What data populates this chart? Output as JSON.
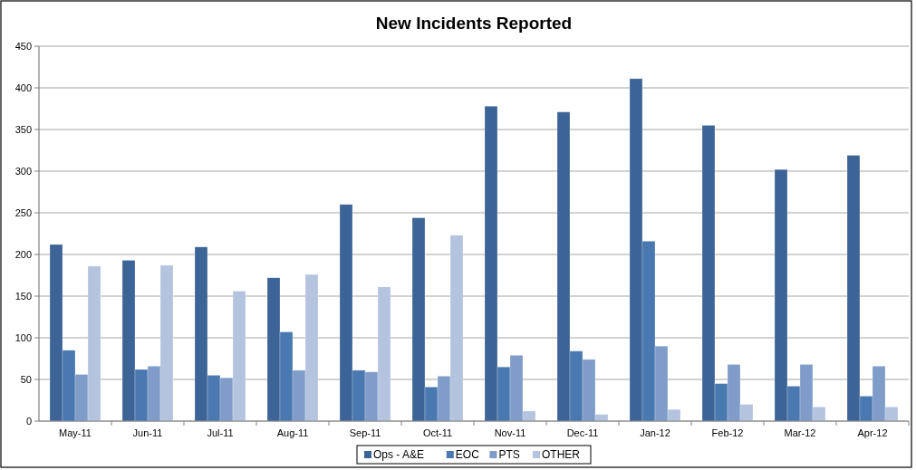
{
  "chart_data": {
    "type": "bar",
    "title": "New Incidents Reported",
    "categories": [
      "May-11",
      "Jun-11",
      "Jul-11",
      "Aug-11",
      "Sep-11",
      "Oct-11",
      "Nov-11",
      "Dec-11",
      "Jan-12",
      "Feb-12",
      "Mar-12",
      "Apr-12"
    ],
    "series": [
      {
        "name": "Ops - A&E",
        "color": "#3c6496",
        "values": [
          212,
          193,
          209,
          172,
          260,
          244,
          378,
          371,
          411,
          355,
          302,
          319
        ]
      },
      {
        "name": "EOC",
        "color": "#4a78b0",
        "values": [
          85,
          62,
          55,
          107,
          61,
          41,
          65,
          84,
          216,
          45,
          42,
          30
        ]
      },
      {
        "name": "PTS",
        "color": "#7f9dc8",
        "values": [
          56,
          66,
          52,
          61,
          59,
          54,
          79,
          74,
          90,
          68,
          68,
          66
        ]
      },
      {
        "name": "OTHER",
        "color": "#b4c4de",
        "values": [
          186,
          187,
          156,
          176,
          161,
          223,
          12,
          8,
          14,
          20,
          17,
          17
        ]
      }
    ],
    "ylim": [
      0,
      450
    ],
    "yticks": [
      0,
      50,
      100,
      150,
      200,
      250,
      300,
      350,
      400,
      450
    ],
    "grid": "y",
    "legend": "bottom"
  }
}
